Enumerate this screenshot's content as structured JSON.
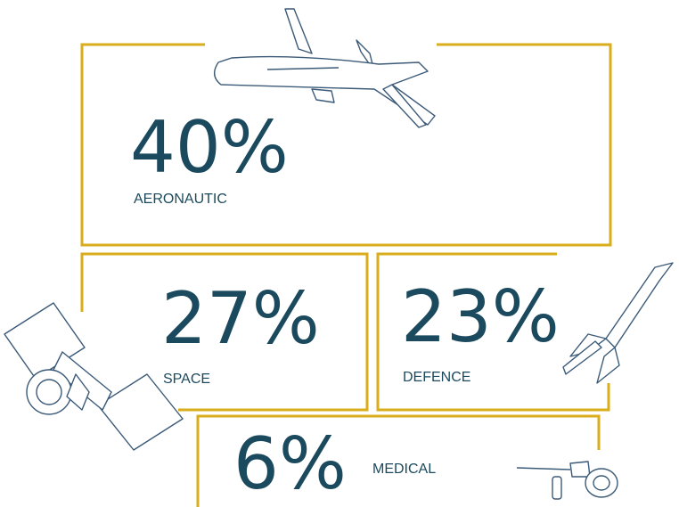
{
  "sectors": [
    {
      "value": "40%",
      "label": "AERONAUTIC"
    },
    {
      "value": "27%",
      "label": "SPACE"
    },
    {
      "value": "23%",
      "label": "DEFENCE"
    },
    {
      "value": "6%",
      "label": "MEDICAL"
    }
  ]
}
